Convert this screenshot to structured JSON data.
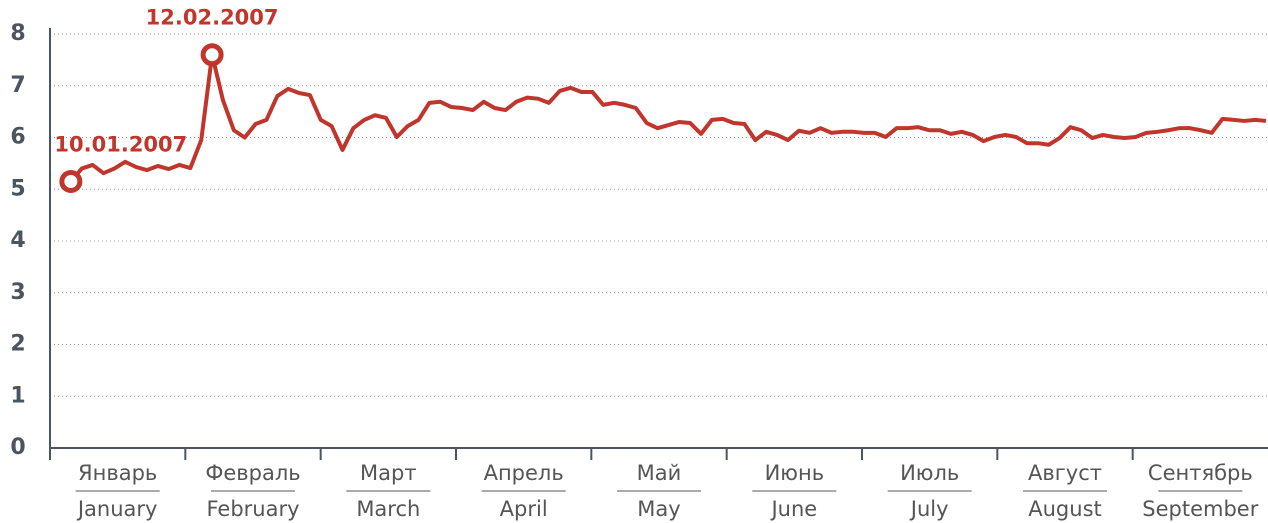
{
  "chart_data": {
    "type": "line",
    "color": "#c0362c",
    "ylim": [
      0,
      8
    ],
    "yticks": [
      0,
      1,
      2,
      3,
      4,
      5,
      6,
      7,
      8
    ],
    "grid": true,
    "months": [
      {
        "ru": "Январь",
        "en": "January"
      },
      {
        "ru": "Февраль",
        "en": "February"
      },
      {
        "ru": "Март",
        "en": "March"
      },
      {
        "ru": "Апрель",
        "en": "April"
      },
      {
        "ru": "Май",
        "en": "May"
      },
      {
        "ru": "Июнь",
        "en": "June"
      },
      {
        "ru": "Июль",
        "en": "July"
      },
      {
        "ru": "Август",
        "en": "August"
      },
      {
        "ru": "Сентябрь",
        "en": "September"
      }
    ],
    "annotations": [
      {
        "label": "10.01.2007",
        "point": 1
      },
      {
        "label": "12.02.2007",
        "point": 14
      }
    ],
    "values": [
      5.2,
      5.15,
      5.4,
      5.47,
      5.31,
      5.4,
      5.53,
      5.43,
      5.37,
      5.45,
      5.39,
      5.47,
      5.41,
      5.95,
      7.6,
      6.72,
      6.14,
      6.0,
      6.26,
      6.34,
      6.8,
      6.94,
      6.86,
      6.82,
      6.34,
      6.22,
      5.76,
      6.18,
      6.34,
      6.43,
      6.38,
      6.01,
      6.22,
      6.34,
      6.67,
      6.69,
      6.59,
      6.57,
      6.53,
      6.69,
      6.57,
      6.53,
      6.69,
      6.77,
      6.75,
      6.67,
      6.9,
      6.96,
      6.88,
      6.88,
      6.63,
      6.67,
      6.63,
      6.57,
      6.28,
      6.18,
      6.24,
      6.3,
      6.28,
      6.07,
      6.34,
      6.36,
      6.28,
      6.26,
      5.95,
      6.11,
      6.05,
      5.95,
      6.13,
      6.09,
      6.18,
      6.09,
      6.11,
      6.11,
      6.09,
      6.09,
      6.01,
      6.18,
      6.18,
      6.2,
      6.14,
      6.14,
      6.07,
      6.11,
      6.05,
      5.93,
      6.01,
      6.05,
      6.01,
      5.89,
      5.89,
      5.86,
      5.99,
      6.2,
      6.14,
      5.99,
      6.05,
      6.01,
      5.99,
      6.01,
      6.09,
      6.11,
      6.14,
      6.18,
      6.18,
      6.14,
      6.09,
      6.36,
      6.34,
      6.32,
      6.34,
      6.32
    ]
  }
}
